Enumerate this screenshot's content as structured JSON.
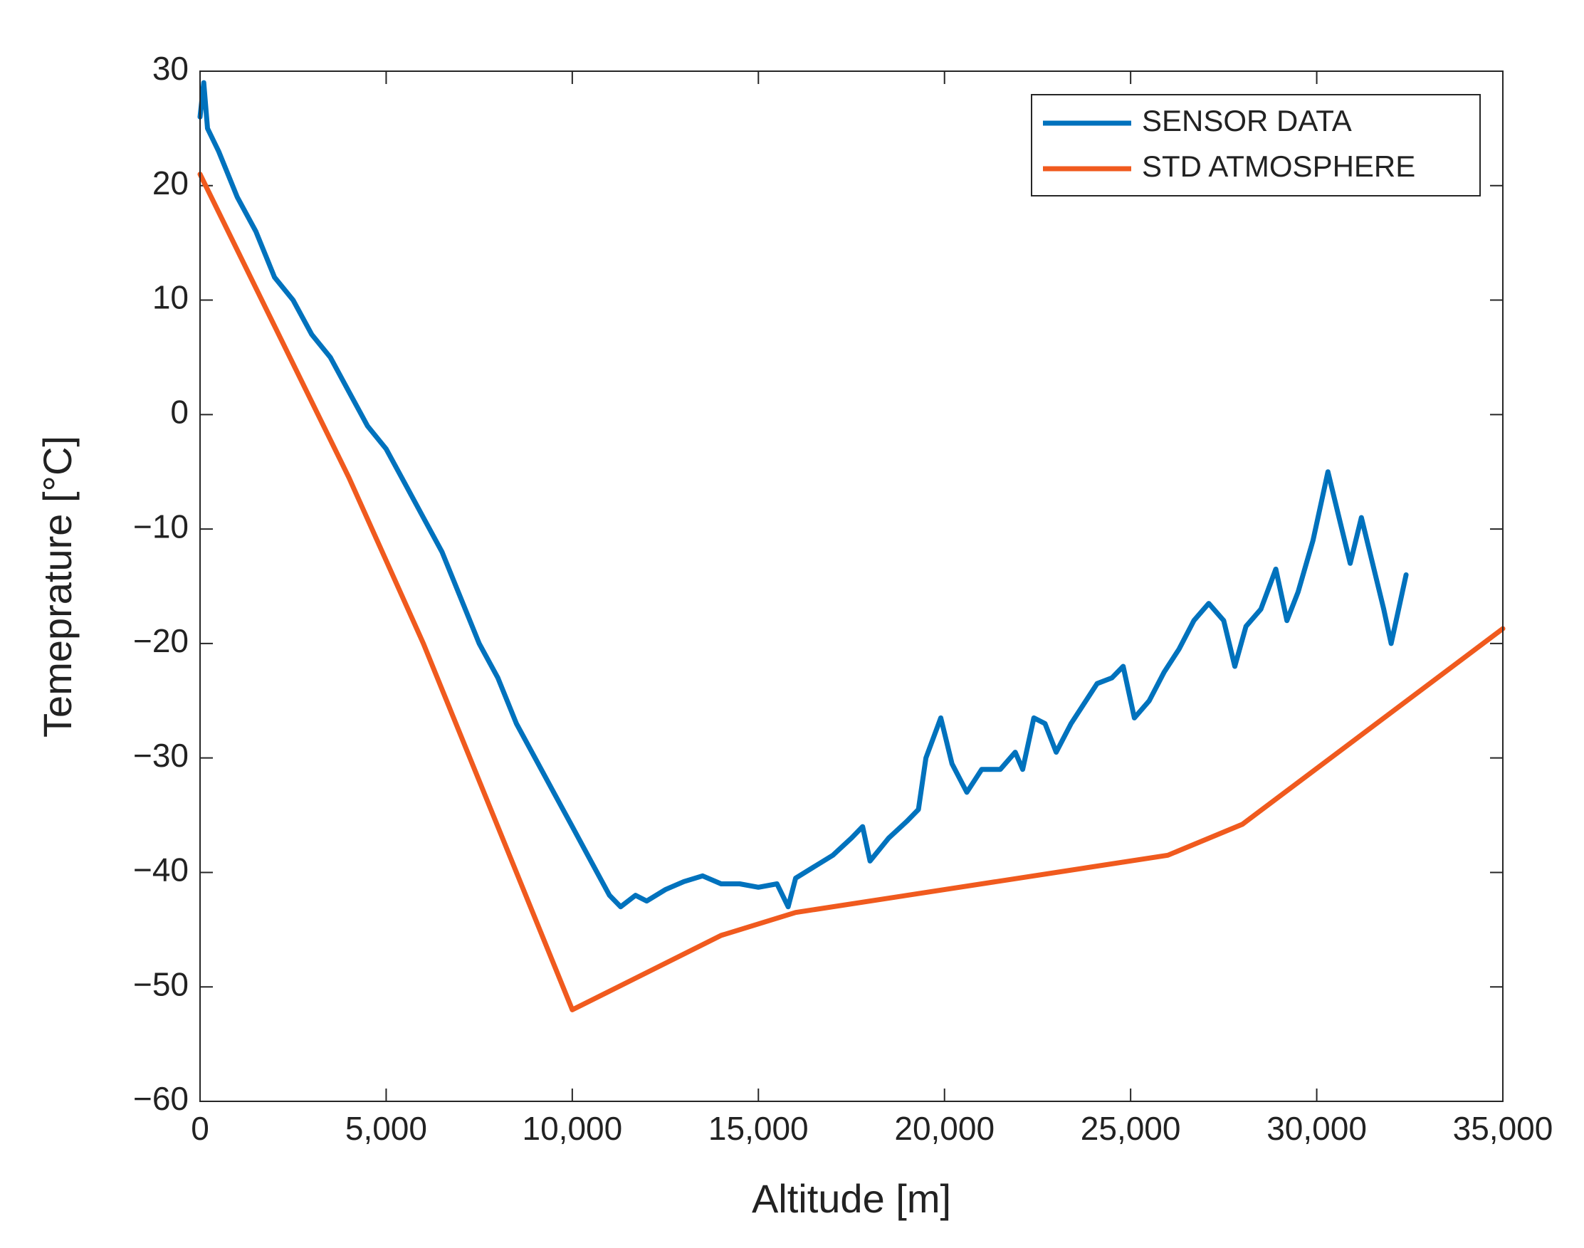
{
  "chart_data": {
    "type": "line",
    "xlabel": "Altitude [m]",
    "ylabel": "Temeprature [°C]",
    "xlim": [
      0,
      35000
    ],
    "ylim": [
      -60,
      30
    ],
    "xticks": [
      0,
      {
        "value": 5000,
        "label": "5,000"
      },
      {
        "value": 10000,
        "label": "10,000"
      },
      {
        "value": 15000,
        "label": "15,000"
      },
      {
        "value": 20000,
        "label": "20,000"
      },
      {
        "value": 25000,
        "label": "25,000"
      },
      {
        "value": 30000,
        "label": "30,000"
      },
      {
        "value": 35000,
        "label": "35,000"
      }
    ],
    "yticks": [
      {
        "value": -60,
        "label": "−60"
      },
      {
        "value": -50,
        "label": "−50"
      },
      {
        "value": -40,
        "label": "−40"
      },
      {
        "value": -30,
        "label": "−30"
      },
      {
        "value": -20,
        "label": "−20"
      },
      {
        "value": -10,
        "label": "−10"
      },
      0,
      10,
      20,
      30
    ],
    "legend": "upper right",
    "series": [
      {
        "name": "SENSOR DATA",
        "color": "#0072bd",
        "x": [
          0,
          100,
          200,
          500,
          1000,
          1500,
          2000,
          2500,
          3000,
          3500,
          4000,
          4500,
          5000,
          5500,
          6000,
          6500,
          7000,
          7500,
          8000,
          8500,
          9000,
          9500,
          10000,
          10500,
          11000,
          11300,
          11700,
          12000,
          12500,
          13000,
          13500,
          14000,
          14500,
          15000,
          15500,
          15800,
          16000,
          16500,
          17000,
          17500,
          17800,
          18000,
          18500,
          19000,
          19300,
          19500,
          19900,
          20200,
          20600,
          21000,
          21500,
          21900,
          22100,
          22400,
          22700,
          23000,
          23400,
          23800,
          24100,
          24500,
          24800,
          25100,
          25500,
          25900,
          26300,
          26700,
          27100,
          27500,
          27800,
          28100,
          28500,
          28900,
          29200,
          29500,
          29900,
          30300,
          30600,
          30900,
          31200,
          31500,
          31800,
          32000,
          32200,
          32400
        ],
        "values": [
          26,
          29,
          25,
          23,
          19,
          16,
          12,
          10,
          7,
          5,
          2,
          -1,
          -3,
          -6,
          -9,
          -12,
          -16,
          -20,
          -23,
          -27,
          -30,
          -33,
          -36,
          -39,
          -42,
          -43,
          -42,
          -42.5,
          -41.5,
          -40.8,
          -40.3,
          -41,
          -41,
          -41.3,
          -41,
          -43,
          -40.5,
          -39.5,
          -38.5,
          -37,
          -36,
          -39,
          -37,
          -35.5,
          -34.5,
          -30,
          -26.5,
          -30.5,
          -33,
          -31,
          -31,
          -29.5,
          -31,
          -26.5,
          -27,
          -29.5,
          -27,
          -25,
          -23.5,
          -23,
          -22,
          -26.5,
          -25,
          -22.5,
          -20.5,
          -18,
          -16.5,
          -18,
          -22,
          -18.5,
          -17,
          -13.5,
          -18,
          -15.5,
          -11,
          -5,
          -9,
          -13,
          -9,
          -13,
          -17,
          -20,
          -17,
          -14
        ]
      },
      {
        "name": "STD ATMOSPHERE",
        "color": "#f05a1e",
        "x": [
          0,
          4000,
          6000,
          10000,
          14000,
          16000,
          26000,
          28000,
          35000
        ],
        "values": [
          21,
          -5.5,
          -20,
          -52,
          -45.5,
          -43.5,
          -38.5,
          -35.8,
          -18.7
        ]
      }
    ]
  }
}
